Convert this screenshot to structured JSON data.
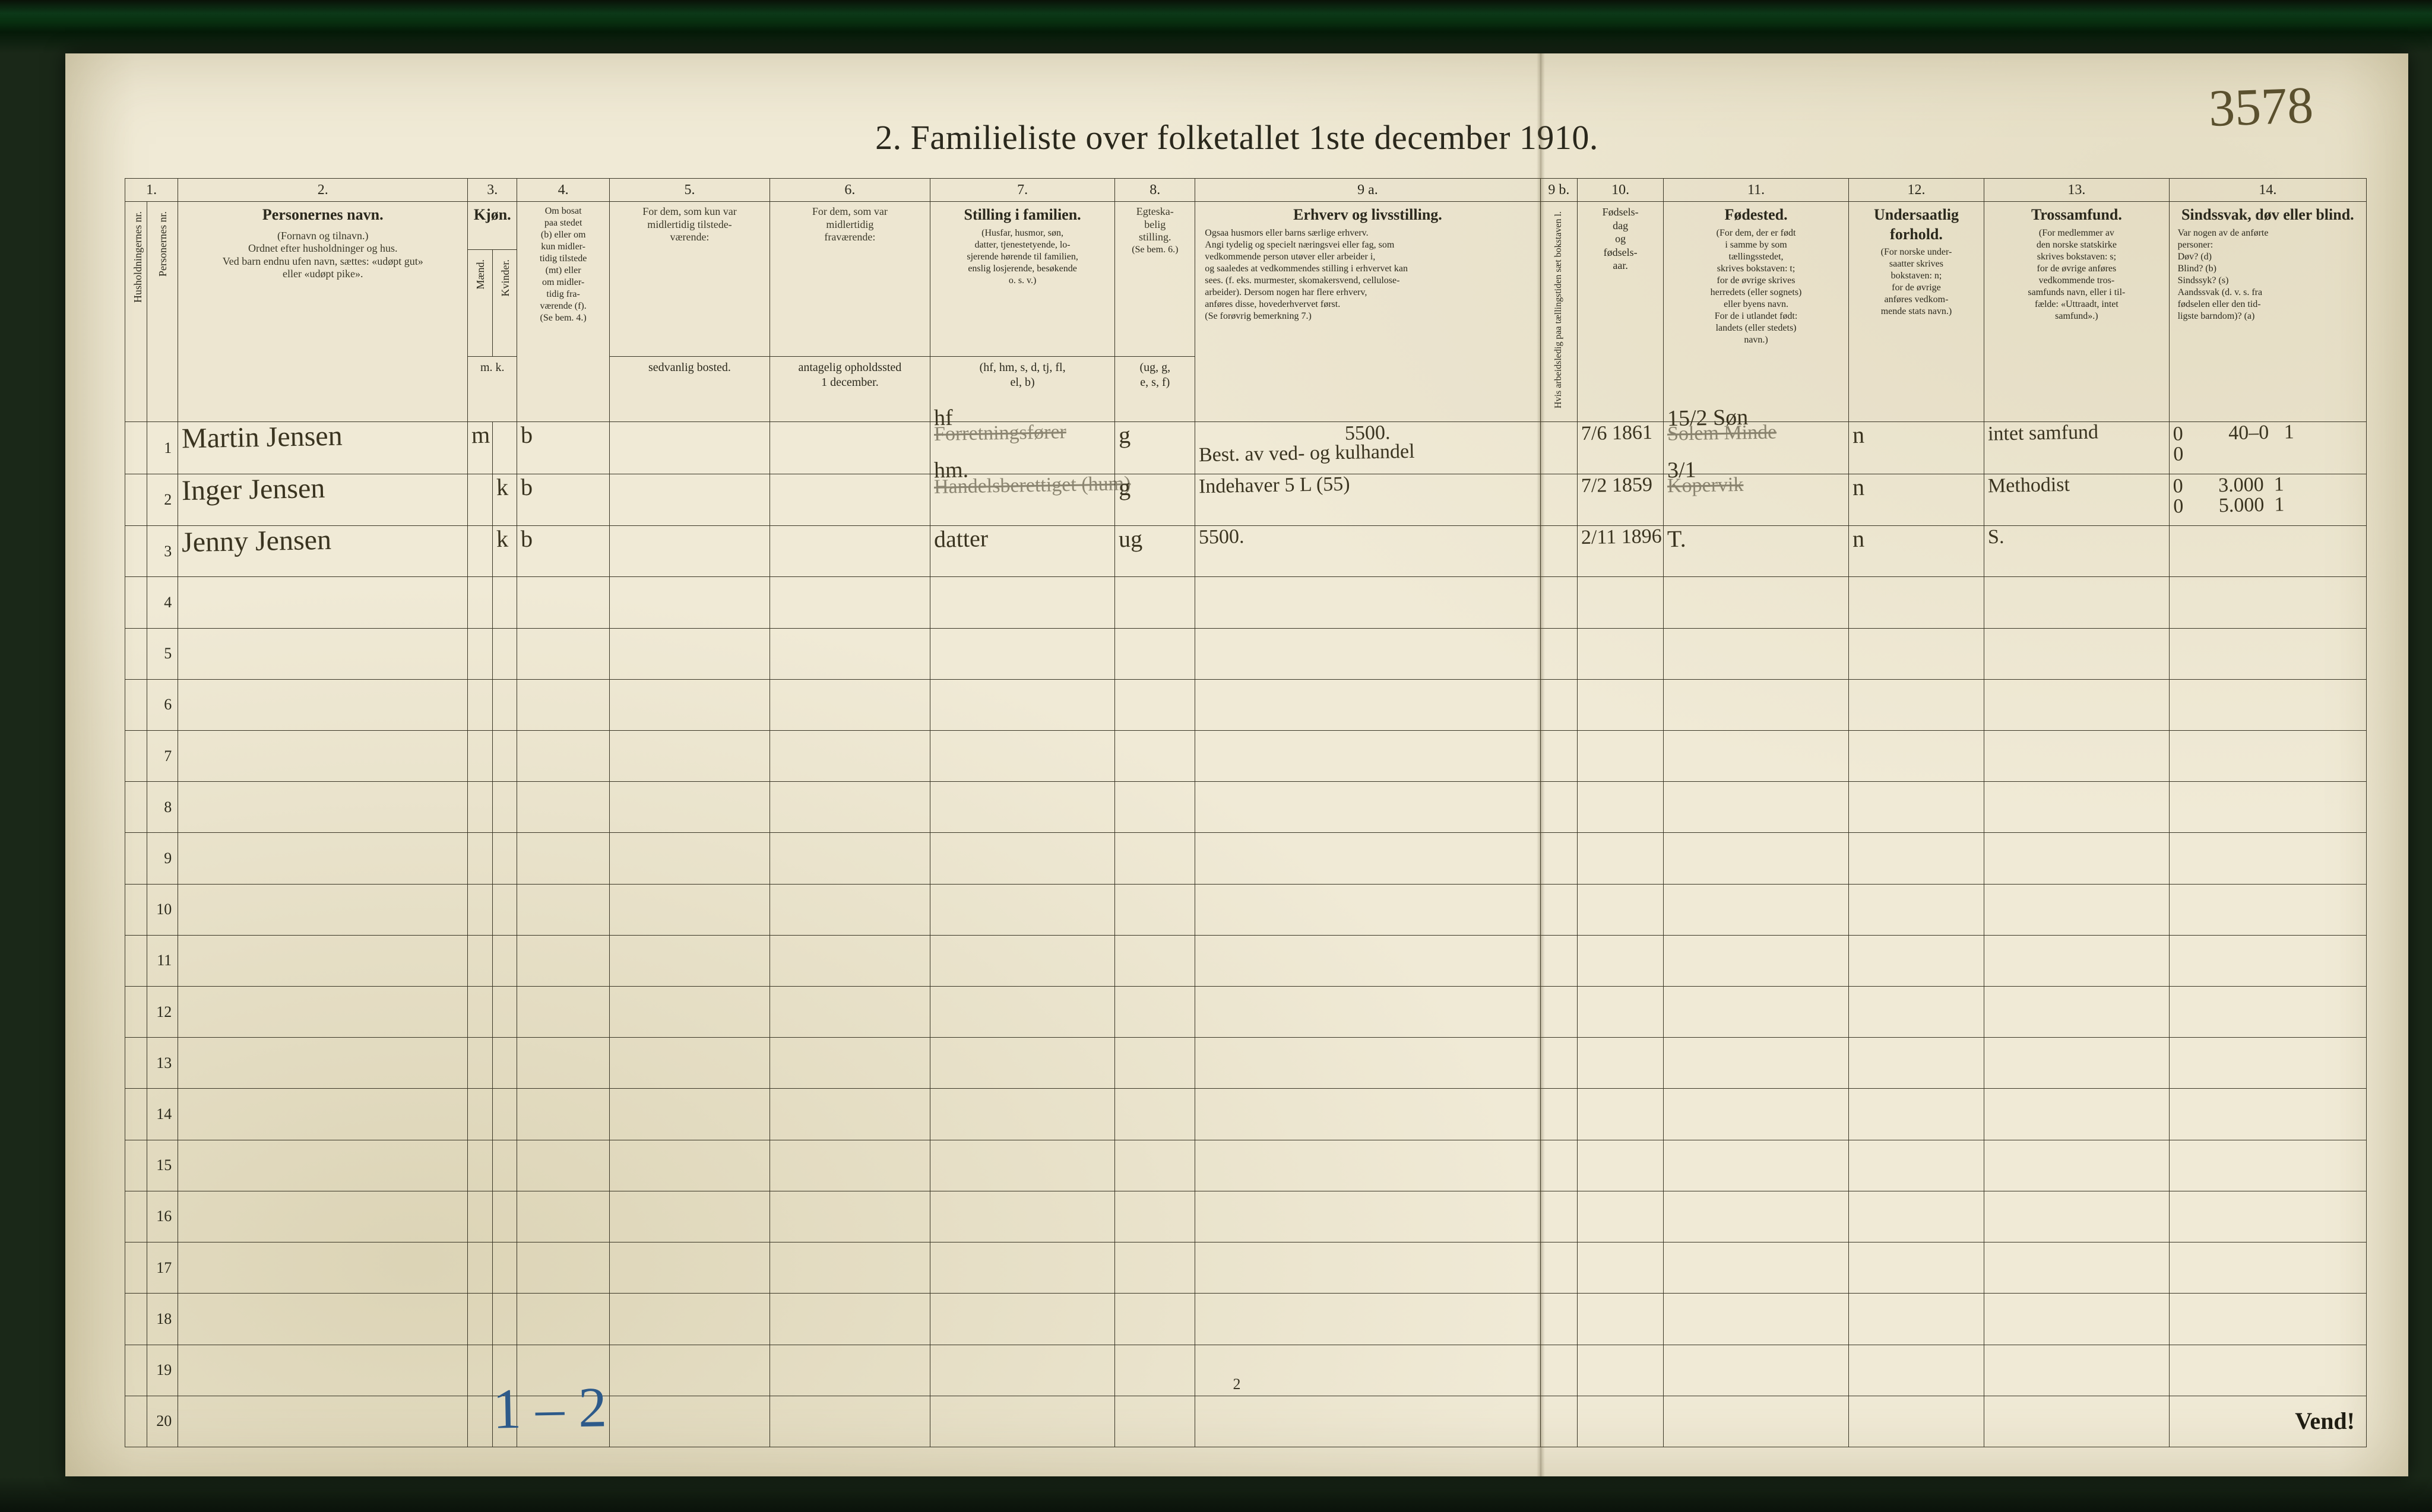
{
  "title": "2.   Familieliste over folketallet 1ste december 1910.",
  "handPageNumber": "3578",
  "footerPageNum": "2",
  "footerHand": "1 – 2",
  "vend": "Vend!",
  "colNumbers": [
    "1.",
    "2.",
    "3.",
    "4.",
    "5.",
    "6.",
    "7.",
    "8.",
    "9 a.",
    "9 b.",
    "10.",
    "11.",
    "12.",
    "13.",
    "14."
  ],
  "headers": {
    "c1a": "Husholdningernes nr.",
    "c1b": "Personernes nr.",
    "c2_main": "Personernes navn.",
    "c2_sub": "(Fornavn og tilnavn.)\nOrdnet efter husholdninger og hus.\nVed barn endnu ufen navn, sættes: «udøpt gut»\neller «udøpt pike».",
    "c3_main": "Kjøn.",
    "c3_a": "Mænd.",
    "c3_b": "Kvinder.",
    "c3_bot": "m.  k.",
    "c4_top": "Om bosat\npaa stedet\n(b) eller om\nkun midler-\ntidig tilstede\n(mt) eller\nom midler-\ntidig fra-\nværende (f).\n(Se bem. 4.)",
    "c5_top": "For dem, som kun var\nmidlertidig tilstede-\nværende:",
    "c5_bot": "sedvanlig bosted.",
    "c6_top": "For dem, som var\nmidlertidig\nfraværende:",
    "c6_bot": "antagelig opholdssted\n1 december.",
    "c7_top": "Stilling i familien.",
    "c7_sub": "(Husfar, husmor, søn,\ndatter, tjenestetyende, lo-\nsjerende hørende til familien,\nenslig losjerende, besøkende\no. s. v.)",
    "c7_bot": "(hf, hm, s, d, tj, fl,\nel, b)",
    "c8_top": "Egteska-\nbelig\nstilling.",
    "c8_sub": "(Se bem. 6.)",
    "c8_bot": "(ug, g,\ne, s, f)",
    "c9a_top": "Erhverv og livsstilling.",
    "c9a_sub": "Ogsaa husmors eller barns særlige erhverv.\nAngi tydelig og specielt næringsvei eller fag, som\nvedkommende person utøver eller arbeider i,\nog saaledes at vedkommendes stilling i erhvervet kan\nsees. (f. eks. murmester, skomakersvend, cellulose-\narbeider). Dersom nogen har flere erhverv,\nanføres disse, hovederhvervet først.\n(Se forøvrig bemerkning 7.)",
    "c9b": "Hvis arbeidsledig\npaa tællingstiden\nsæt bokstaven l.",
    "c10_top": "Fødsels-\ndag\nog\nfødsels-\naar.",
    "c11_top": "Fødested.",
    "c11_sub": "(For dem, der er født\ni samme by som\ntællingsstedet,\nskrives bokstaven:  t;\nfor de øvrige skrives\nherredets (eller sognets)\neller byens navn.\nFor de i utlandet født:\nlandets (eller stedets)\nnavn.)",
    "c12_top": "Undersaatlig\nforhold.",
    "c12_sub": "(For norske under-\nsaatter skrives\nbokstaven:  n;\nfor de øvrige\nanføres vedkom-\nmende stats navn.)",
    "c13_top": "Trossamfund.",
    "c13_sub": "(For medlemmer av\nden norske statskirke\nskrives bokstaven:  s;\nfor de øvrige anføres\nvedkommende tros-\nsamfunds navn, eller i til-\nfælde:  «Uttraadt, intet\nsamfund».)",
    "c14_top": "Sindssvak, døv\neller blind.",
    "c14_sub": "Var nogen av de anførte\npersoner:\nDøv?         (d)\nBlind?       (b)\nSindssyk?  (s)\nAandssvak (d. v. s. fra\nfødselen eller den tid-\nligste barndom)?  (a)"
  },
  "rows": [
    {
      "num": "1",
      "name": "Martin Jensen",
      "sexM": "m",
      "sexK": "",
      "res": "b",
      "c7_over": "hf",
      "c7_under": "Forretningsfører",
      "c8": "g",
      "c9a_top": "5500.",
      "c9a": "Best. av ved- og kulhandel",
      "c10": "7/6 1861",
      "c11_over": "15/2 Søn",
      "c11_under": "Solem Minde",
      "c12": "n",
      "c13": "intet samfund",
      "c14": "0         40–0   1\n0"
    },
    {
      "num": "2",
      "name": "Inger Jensen",
      "sexM": "",
      "sexK": "k",
      "res": "b",
      "c7_over": "hm.",
      "c7_under": "Handelsberettiget (hum)",
      "c8": "g",
      "c9a_top": "",
      "c9a": "Indehaver 5 L (55)",
      "c10": "7/2 1859",
      "c11_over": "3/1",
      "c11_under": "Kopervik",
      "c12": "n",
      "c13": "Methodist",
      "c14": "0       3.000  1\n0       5.000  1"
    },
    {
      "num": "3",
      "name": "Jenny Jensen",
      "sexM": "",
      "sexK": "k",
      "res": "b",
      "c7_over": "",
      "c7_under": "datter",
      "c8": "ug",
      "c9a_top": "",
      "c9a": "5500.",
      "c10": "2/11 1896",
      "c11_over": "",
      "c11_under": "T.",
      "c12": "n",
      "c13": "S.",
      "c14": ""
    }
  ],
  "totalBodyRows": 20,
  "colWidths": {
    "c1a": 36,
    "c1b": 50,
    "c2": 470,
    "c3a": 40,
    "c3b": 40,
    "c4": 150,
    "c5": 260,
    "c6": 260,
    "c7": 300,
    "c8": 130,
    "c9a": 560,
    "c9b": 60,
    "c10": 140,
    "c11": 300,
    "c12": 220,
    "c13": 300,
    "c14": 320
  }
}
